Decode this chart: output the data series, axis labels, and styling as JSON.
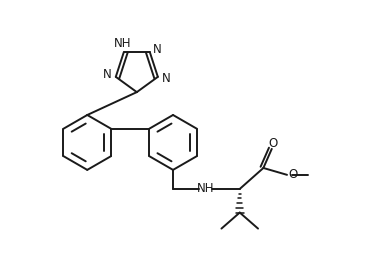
{
  "bg_color": "#ffffff",
  "line_color": "#1a1a1a",
  "line_width": 1.4,
  "font_size": 8.5,
  "fig_width": 3.88,
  "fig_height": 2.62,
  "dpi": 100,
  "xlim": [
    0,
    10
  ],
  "ylim": [
    0,
    6.8
  ]
}
